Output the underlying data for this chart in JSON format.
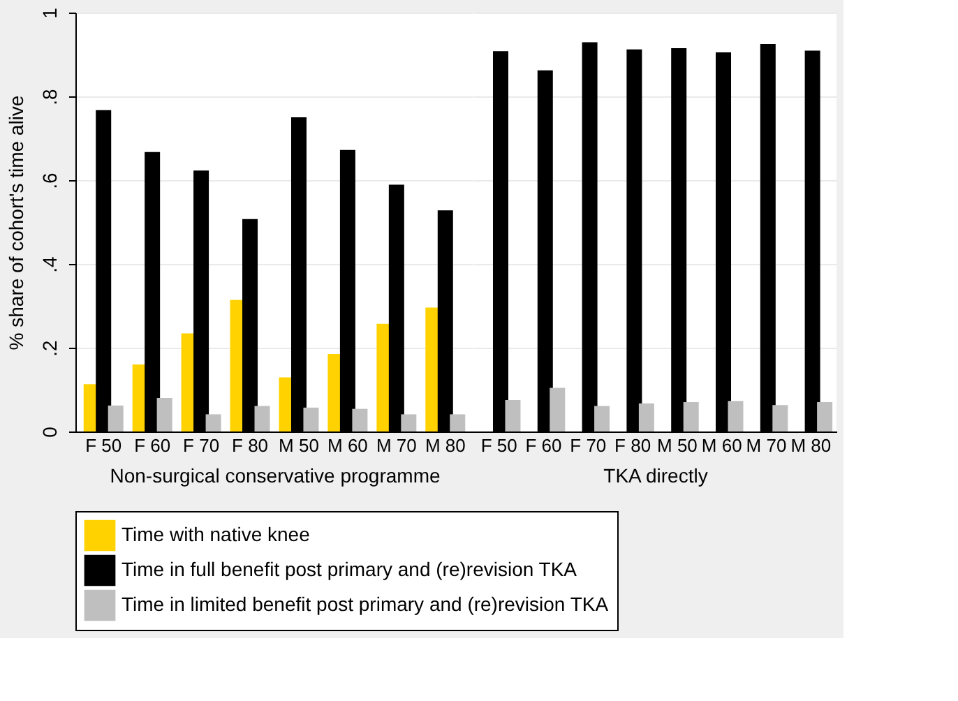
{
  "chart_data": [
    {
      "type": "bar",
      "xlabel": "Non-surgical conservative programme",
      "ylabel": "% share of cohort's time alive",
      "categories": [
        "F 50",
        "F 60",
        "F 70",
        "F 80",
        "M 50",
        "M 60",
        "M 70",
        "M 80"
      ],
      "series": [
        {
          "name": "Time with native knee",
          "color": "#ffd200",
          "values": [
            0.113,
            0.16,
            0.234,
            0.314,
            0.129,
            0.185,
            0.257,
            0.296
          ]
        },
        {
          "name": "Time in full benefit post primary and (re)revision TKA",
          "color": "#000000",
          "values": [
            0.767,
            0.667,
            0.623,
            0.507,
            0.75,
            0.672,
            0.589,
            0.528
          ]
        },
        {
          "name": "Time in limited benefit post primary and (re)revision TKA",
          "color": "#bfbfbf",
          "values": [
            0.062,
            0.08,
            0.041,
            0.061,
            0.057,
            0.054,
            0.041,
            0.041
          ]
        }
      ],
      "ylim": [
        0,
        1
      ],
      "yticks": [
        0,
        {
          "value": 0.2,
          "label": ".2"
        },
        {
          "value": 0.4,
          "label": ".4"
        },
        {
          "value": 0.6,
          "label": ".6"
        },
        {
          "value": 0.8,
          "label": ".8"
        },
        1
      ],
      "grid": "y",
      "legend": "bottom"
    },
    {
      "type": "bar",
      "xlabel": "TKA directly",
      "categories": [
        "F 50",
        "F 60",
        "F 70",
        "F 80",
        "M 50",
        "M 60",
        "M 70",
        "M 80"
      ],
      "series": [
        {
          "name": "Time with native knee",
          "color": "#ffd200",
          "values": [
            null,
            null,
            null,
            null,
            null,
            null,
            null,
            null
          ]
        },
        {
          "name": "Time in full benefit post primary and (re)revision TKA",
          "color": "#000000",
          "values": [
            0.908,
            0.862,
            0.929,
            0.912,
            0.915,
            0.905,
            0.925,
            0.909
          ]
        },
        {
          "name": "Time in limited benefit post primary and (re)revision TKA",
          "color": "#bfbfbf",
          "values": [
            0.075,
            0.104,
            0.061,
            0.067,
            0.07,
            0.073,
            0.063,
            0.07
          ]
        }
      ],
      "ylim": [
        0,
        1
      ],
      "yticks": [
        0,
        0.2,
        0.4,
        0.6,
        0.8,
        1
      ],
      "grid": "y",
      "legend": "bottom",
      "tick_labels": "x"
    }
  ]
}
